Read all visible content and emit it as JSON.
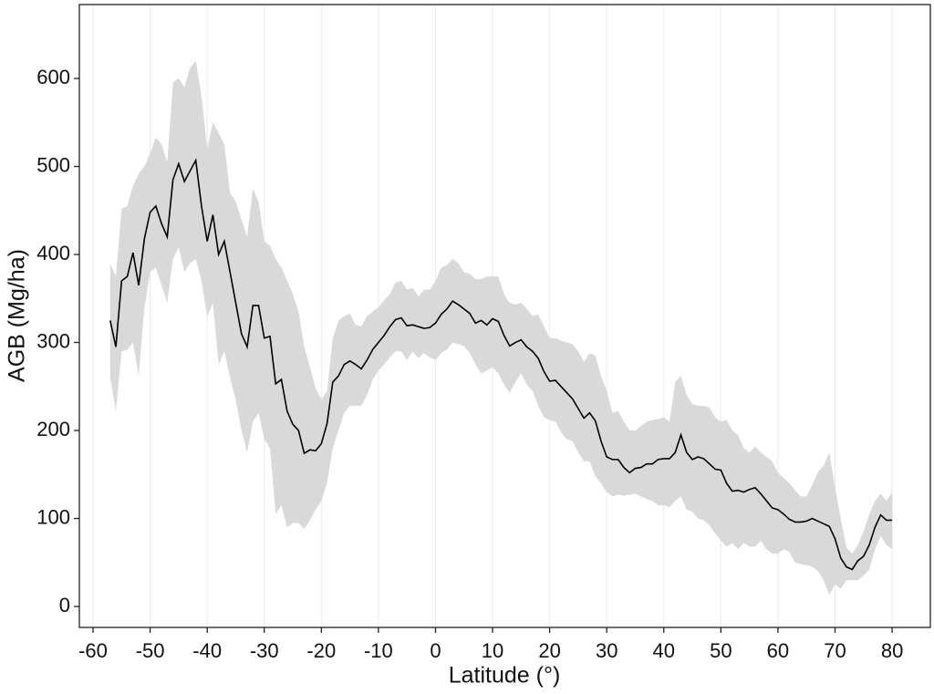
{
  "chart_data": {
    "type": "ribbon-line",
    "x_label": "Latitude (°)",
    "y_label": "AGB (Mg/ha)",
    "xlim": [
      -62.4,
      86.7
    ],
    "ylim": [
      -23.8,
      684
    ],
    "xticks": [
      -60,
      -50,
      -40,
      -30,
      -20,
      -10,
      0,
      10,
      20,
      30,
      40,
      50,
      60,
      70,
      80
    ],
    "yticks": [
      0,
      100,
      200,
      300,
      400,
      500,
      600
    ],
    "xgrid": true,
    "line_color": "#000000",
    "band_color": "#d9d9d9",
    "x": [
      -57,
      -56,
      -55,
      -54,
      -53,
      -52,
      -51,
      -50,
      -49,
      -48,
      -47,
      -46,
      -45,
      -44,
      -43,
      -42,
      -41,
      -40,
      -39,
      -38,
      -37,
      -36,
      -35,
      -34,
      -33,
      -32,
      -31,
      -30,
      -29,
      -28,
      -27,
      -26,
      -25,
      -24,
      -23,
      -22,
      -21,
      -20,
      -19,
      -18,
      -17,
      -16,
      -15,
      -14,
      -13,
      -12,
      -11,
      -10,
      -9,
      -8,
      -7,
      -6,
      -5,
      -4,
      -3,
      -2,
      -1,
      0,
      1,
      2,
      3,
      4,
      5,
      6,
      7,
      8,
      9,
      10,
      11,
      12,
      13,
      14,
      15,
      16,
      17,
      18,
      19,
      20,
      21,
      22,
      23,
      24,
      25,
      26,
      27,
      28,
      29,
      30,
      31,
      32,
      33,
      34,
      35,
      36,
      37,
      38,
      39,
      40,
      41,
      42,
      43,
      44,
      45,
      46,
      47,
      48,
      49,
      50,
      51,
      52,
      53,
      54,
      55,
      56,
      57,
      58,
      59,
      60,
      61,
      62,
      63,
      64,
      65,
      66,
      67,
      68,
      69,
      70,
      71,
      72,
      73,
      74,
      75,
      76,
      77,
      78,
      79,
      80
    ],
    "values": [
      325,
      295,
      370,
      375,
      402,
      365,
      418,
      448,
      455,
      435,
      420,
      485,
      503,
      483,
      495,
      507,
      455,
      415,
      445,
      400,
      415,
      380,
      345,
      310,
      295,
      342,
      342,
      305,
      307,
      253,
      258,
      222,
      207,
      200,
      174,
      178,
      177,
      185,
      208,
      255,
      262,
      275,
      279,
      275,
      270,
      280,
      292,
      300,
      308,
      318,
      326,
      328,
      319,
      320,
      318,
      316,
      317,
      322,
      332,
      338,
      347,
      343,
      338,
      333,
      322,
      325,
      320,
      327,
      324,
      308,
      296,
      300,
      303,
      295,
      290,
      282,
      267,
      256,
      257,
      250,
      243,
      236,
      225,
      214,
      220,
      211,
      188,
      170,
      167,
      167,
      158,
      152,
      157,
      158,
      162,
      162,
      167,
      168,
      168,
      175,
      195,
      175,
      167,
      170,
      168,
      162,
      156,
      155,
      140,
      131,
      132,
      130,
      133,
      135,
      128,
      120,
      112,
      110,
      105,
      99,
      96,
      96,
      97,
      100,
      97,
      94,
      91,
      77,
      55,
      45,
      42,
      52,
      57,
      70,
      90,
      104,
      98,
      98
    ],
    "lower": [
      260,
      222,
      290,
      292,
      300,
      262,
      340,
      380,
      385,
      365,
      345,
      395,
      408,
      380,
      390,
      395,
      370,
      330,
      345,
      275,
      290,
      260,
      235,
      200,
      175,
      210,
      220,
      190,
      180,
      105,
      115,
      90,
      95,
      95,
      88,
      98,
      110,
      120,
      140,
      180,
      200,
      220,
      228,
      228,
      228,
      240,
      258,
      268,
      275,
      283,
      290,
      290,
      280,
      290,
      282,
      288,
      283,
      280,
      288,
      292,
      300,
      298,
      296,
      288,
      275,
      265,
      268,
      272,
      265,
      252,
      243,
      255,
      265,
      252,
      245,
      228,
      215,
      212,
      210,
      198,
      190,
      188,
      175,
      165,
      165,
      148,
      140,
      130,
      125,
      127,
      126,
      127,
      128,
      125,
      122,
      120,
      115,
      115,
      113,
      120,
      125,
      110,
      108,
      100,
      98,
      92,
      83,
      75,
      68,
      72,
      65,
      72,
      68,
      68,
      75,
      65,
      60,
      60,
      65,
      62,
      50,
      48,
      47,
      45,
      40,
      30,
      13,
      25,
      20,
      30,
      30,
      30,
      35,
      42,
      65,
      80,
      70,
      65
    ],
    "upper": [
      390,
      375,
      452,
      455,
      478,
      492,
      500,
      515,
      533,
      525,
      505,
      595,
      600,
      590,
      612,
      620,
      580,
      520,
      550,
      538,
      525,
      470,
      460,
      440,
      420,
      475,
      460,
      415,
      410,
      395,
      385,
      370,
      355,
      335,
      295,
      272,
      248,
      235,
      245,
      305,
      325,
      330,
      333,
      320,
      318,
      330,
      335,
      340,
      348,
      355,
      368,
      370,
      360,
      362,
      352,
      360,
      360,
      370,
      385,
      388,
      395,
      390,
      380,
      378,
      372,
      372,
      375,
      375,
      375,
      355,
      345,
      343,
      345,
      338,
      330,
      332,
      318,
      305,
      305,
      302,
      300,
      298,
      290,
      278,
      288,
      285,
      262,
      245,
      220,
      222,
      210,
      200,
      200,
      205,
      210,
      212,
      213,
      215,
      210,
      255,
      262,
      240,
      230,
      228,
      228,
      226,
      215,
      210,
      212,
      200,
      195,
      180,
      175,
      182,
      175,
      170,
      165,
      152,
      146,
      140,
      132,
      125,
      125,
      138,
      153,
      160,
      175,
      135,
      100,
      67,
      60,
      70,
      85,
      105,
      120,
      128,
      120,
      130
    ]
  }
}
